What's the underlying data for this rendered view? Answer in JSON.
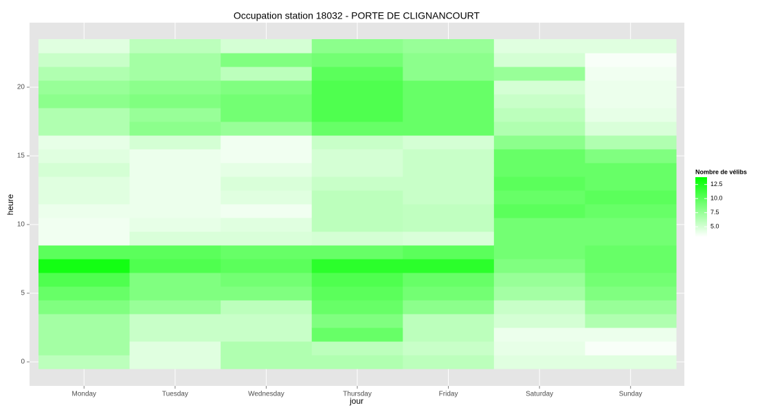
{
  "chart_data": {
    "type": "heatmap",
    "title": "Occupation station 18032 - PORTE DE CLIGNANCOURT",
    "xlabel": "jour",
    "ylabel": "heure",
    "categories": [
      "Monday",
      "Tuesday",
      "Wednesday",
      "Thursday",
      "Friday",
      "Saturday",
      "Sunday"
    ],
    "y": [
      0,
      1,
      2,
      3,
      4,
      5,
      6,
      7,
      8,
      9,
      10,
      11,
      12,
      13,
      14,
      15,
      16,
      17,
      18,
      19,
      20,
      21,
      22,
      23
    ],
    "values": [
      [
        6,
        7,
        7,
        7,
        8.5,
        9.5,
        10.5,
        13,
        10,
        3.8,
        3.8,
        4,
        4.5,
        4.5,
        5,
        4.5,
        4.2,
        6.5,
        6.5,
        8,
        7.5,
        6.5,
        5.5,
        4.5
      ],
      [
        4.5,
        4.5,
        5.5,
        5.5,
        7.5,
        8.5,
        8.5,
        10.5,
        10,
        4.8,
        4.2,
        4,
        4,
        4,
        4,
        4,
        5,
        8,
        7.5,
        8.5,
        8,
        7,
        7,
        6
      ],
      [
        6.5,
        6.5,
        5.5,
        5.5,
        6,
        8.5,
        9,
        10,
        9.5,
        4.8,
        4.5,
        3.8,
        4.5,
        4.8,
        4.3,
        3.8,
        3.8,
        7.5,
        9,
        9,
        8.5,
        6,
        8.5,
        5
      ],
      [
        6.5,
        6,
        9.5,
        8.5,
        9.5,
        10,
        10.5,
        12,
        9.5,
        5,
        6,
        6,
        6,
        5.5,
        5,
        5,
        5.5,
        9.5,
        10.5,
        10.5,
        10.5,
        10,
        9,
        8
      ],
      [
        6,
        5.5,
        6,
        6,
        8,
        9,
        9.5,
        12,
        10,
        4.8,
        5.8,
        5.8,
        5.5,
        5.5,
        5.5,
        5.5,
        5,
        9.5,
        9.5,
        9.5,
        9.5,
        8,
        8,
        7.5
      ],
      [
        4.5,
        4.2,
        4,
        5,
        5.5,
        7,
        7.5,
        8.5,
        9,
        9,
        9,
        10,
        9.5,
        10,
        9.5,
        9.5,
        8,
        6.5,
        6,
        5.5,
        5,
        7.5,
        5,
        4.5
      ],
      [
        4.5,
        3.5,
        4,
        6.5,
        7.5,
        8.5,
        9,
        9.5,
        9.5,
        9,
        9,
        9.5,
        10,
        9.5,
        9.5,
        8.5,
        6.5,
        4.8,
        4.2,
        4,
        4,
        3.8,
        3.5,
        4.5
      ]
    ],
    "ylim": [
      -1.75,
      24.7
    ],
    "yticks": [
      0,
      5,
      10,
      15,
      20
    ],
    "grid": true,
    "color_low": "#ffffff",
    "color_high": "#00ff00",
    "legend": {
      "title": "Nombre de vélibs",
      "zlim": [
        3.2,
        13.8
      ],
      "ticks": [
        {
          "value": 5,
          "label": "5.0"
        },
        7.5,
        {
          "value": 10,
          "label": "10.0"
        },
        12.5
      ]
    }
  }
}
